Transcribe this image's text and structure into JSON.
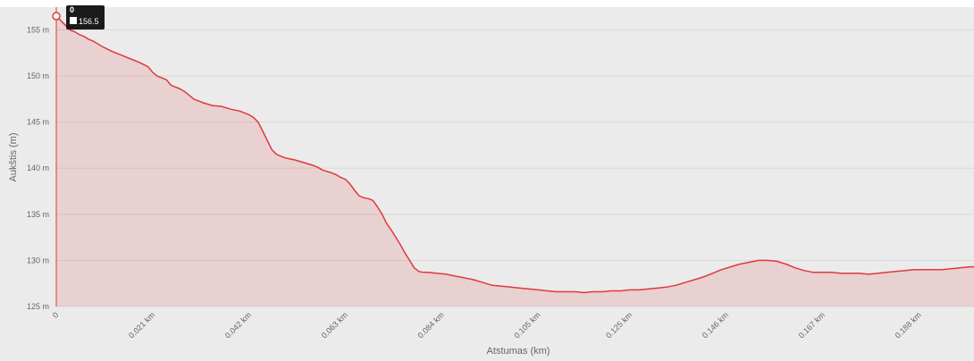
{
  "colors": {
    "background": "#ebebeb",
    "grid": "#d9d9d9",
    "line": "#e0393e",
    "fill": "#e0393e",
    "tooltip_bg": "#1a1a1a",
    "text": "#666666"
  },
  "tooltip": {
    "title": "0",
    "value": "156.5"
  },
  "chart_data": {
    "type": "area",
    "xlabel": "Atstumas (km)",
    "ylabel": "Aukštis (m)",
    "ylim": [
      125,
      156.5
    ],
    "xlim": [
      0,
      0.2
    ],
    "grid": true,
    "y_ticks": [
      {
        "value": 125,
        "label": "125 m"
      },
      {
        "value": 130,
        "label": "130 m"
      },
      {
        "value": 135,
        "label": "135 m"
      },
      {
        "value": 140,
        "label": "140 m"
      },
      {
        "value": 145,
        "label": "145 m"
      },
      {
        "value": 150,
        "label": "150 m"
      },
      {
        "value": 155,
        "label": "155 m"
      }
    ],
    "x_ticks": [
      {
        "value": 0,
        "label": "0"
      },
      {
        "value": 0.021,
        "label": "0.021 km"
      },
      {
        "value": 0.042,
        "label": "0.042 km"
      },
      {
        "value": 0.063,
        "label": "0.063 km"
      },
      {
        "value": 0.084,
        "label": "0.084 km"
      },
      {
        "value": 0.105,
        "label": "0.105 km"
      },
      {
        "value": 0.125,
        "label": "0.125 km"
      },
      {
        "value": 0.146,
        "label": "0.146 km"
      },
      {
        "value": 0.167,
        "label": "0.167 km"
      },
      {
        "value": 0.188,
        "label": "0.188 km"
      }
    ],
    "series": [
      {
        "x": [
          0,
          0.001,
          0.002,
          0.003,
          0.004,
          0.005,
          0.006,
          0.007,
          0.008,
          0.01,
          0.012,
          0.014,
          0.016,
          0.018,
          0.02,
          0.021,
          0.022,
          0.024,
          0.025,
          0.027,
          0.028,
          0.03,
          0.032,
          0.034,
          0.036,
          0.038,
          0.04,
          0.041,
          0.042,
          0.043,
          0.044,
          0.045,
          0.046,
          0.047,
          0.048,
          0.05,
          0.052,
          0.054,
          0.056,
          0.057,
          0.058,
          0.06,
          0.061,
          0.062,
          0.063,
          0.064,
          0.065,
          0.066,
          0.067,
          0.068,
          0.069,
          0.07,
          0.071,
          0.072,
          0.073,
          0.074,
          0.075,
          0.076,
          0.077,
          0.078,
          0.079,
          0.08,
          0.081,
          0.083,
          0.085,
          0.087,
          0.089,
          0.091,
          0.093,
          0.095,
          0.097,
          0.099,
          0.101,
          0.103,
          0.105,
          0.107,
          0.109,
          0.111,
          0.113,
          0.115,
          0.117,
          0.119,
          0.121,
          0.123,
          0.125,
          0.127,
          0.129,
          0.131,
          0.133,
          0.135,
          0.137,
          0.139,
          0.141,
          0.143,
          0.145,
          0.147,
          0.149,
          0.151,
          0.153,
          0.155,
          0.157,
          0.159,
          0.161,
          0.163,
          0.165,
          0.167,
          0.169,
          0.171,
          0.173,
          0.175,
          0.177,
          0.179,
          0.181,
          0.183,
          0.185,
          0.187,
          0.189,
          0.191,
          0.193,
          0.195,
          0.197,
          0.199,
          0.2
        ],
        "y": [
          156.5,
          156.0,
          155.5,
          155.0,
          154.8,
          154.5,
          154.3,
          154.0,
          153.8,
          153.2,
          152.7,
          152.3,
          151.9,
          151.5,
          151.0,
          150.4,
          150.0,
          149.6,
          149.0,
          148.6,
          148.3,
          147.5,
          147.1,
          146.8,
          146.7,
          146.4,
          146.2,
          146.0,
          145.8,
          145.5,
          145.0,
          144.0,
          143.0,
          142.0,
          141.5,
          141.1,
          140.9,
          140.6,
          140.3,
          140.1,
          139.8,
          139.5,
          139.3,
          139.0,
          138.8,
          138.3,
          137.6,
          137.0,
          136.8,
          136.7,
          136.5,
          135.8,
          135.0,
          134.0,
          133.3,
          132.5,
          131.7,
          130.8,
          130.0,
          129.2,
          128.8,
          128.7,
          128.7,
          128.6,
          128.5,
          128.3,
          128.1,
          127.9,
          127.6,
          127.3,
          127.2,
          127.1,
          127.0,
          126.9,
          126.8,
          126.7,
          126.6,
          126.6,
          126.6,
          126.5,
          126.6,
          126.6,
          126.7,
          126.7,
          126.8,
          126.8,
          126.9,
          127.0,
          127.1,
          127.3,
          127.6,
          127.9,
          128.2,
          128.6,
          129.0,
          129.3,
          129.6,
          129.8,
          130.0,
          130.0,
          129.9,
          129.6,
          129.2,
          128.9,
          128.7,
          128.7,
          128.7,
          128.6,
          128.6,
          128.6,
          128.5,
          128.6,
          128.7,
          128.8,
          128.9,
          129.0,
          129.0,
          129.0,
          129.0,
          129.1,
          129.2,
          129.3,
          129.3
        ]
      }
    ]
  }
}
